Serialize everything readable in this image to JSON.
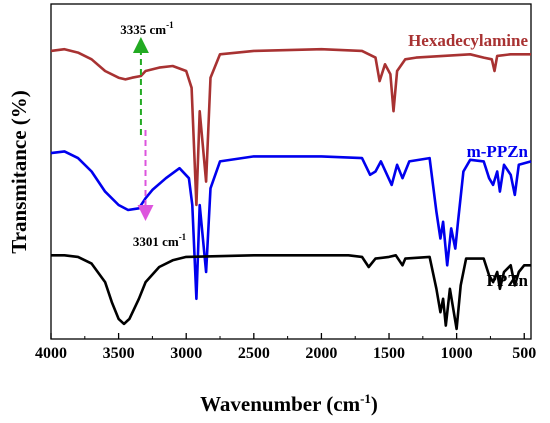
{
  "chart_data": {
    "type": "line",
    "xlabel": "Wavenumber (cm",
    "xlabel_sup": "-1",
    "xlabel_end": ")",
    "ylabel": "Transmitance (%)",
    "xlim": [
      4000,
      450
    ],
    "x_reversed": true,
    "x_ticks": [
      4000,
      3500,
      3000,
      2500,
      2000,
      1500,
      1000,
      500
    ],
    "y_tick_labels_shown": false,
    "legend": "inline labels",
    "series": [
      {
        "name": "Hexadecylamine",
        "color": "#a83232",
        "points": [
          [
            4000,
            0.86
          ],
          [
            3900,
            0.865
          ],
          [
            3800,
            0.855
          ],
          [
            3700,
            0.835
          ],
          [
            3600,
            0.8
          ],
          [
            3500,
            0.78
          ],
          [
            3450,
            0.775
          ],
          [
            3400,
            0.78
          ],
          [
            3335,
            0.785
          ],
          [
            3300,
            0.8
          ],
          [
            3200,
            0.81
          ],
          [
            3100,
            0.815
          ],
          [
            3000,
            0.8
          ],
          [
            2960,
            0.75
          ],
          [
            2925,
            0.4
          ],
          [
            2900,
            0.68
          ],
          [
            2853,
            0.47
          ],
          [
            2820,
            0.78
          ],
          [
            2750,
            0.85
          ],
          [
            2500,
            0.86
          ],
          [
            2000,
            0.865
          ],
          [
            1700,
            0.86
          ],
          [
            1600,
            0.84
          ],
          [
            1570,
            0.77
          ],
          [
            1530,
            0.82
          ],
          [
            1490,
            0.79
          ],
          [
            1467,
            0.68
          ],
          [
            1440,
            0.8
          ],
          [
            1380,
            0.835
          ],
          [
            1300,
            0.84
          ],
          [
            1100,
            0.845
          ],
          [
            900,
            0.85
          ],
          [
            800,
            0.84
          ],
          [
            740,
            0.835
          ],
          [
            720,
            0.8
          ],
          [
            700,
            0.845
          ],
          [
            600,
            0.85
          ],
          [
            450,
            0.85
          ]
        ]
      },
      {
        "name": "m-PPZn",
        "color": "#0000ee",
        "points": [
          [
            4000,
            0.555
          ],
          [
            3900,
            0.56
          ],
          [
            3800,
            0.54
          ],
          [
            3700,
            0.5
          ],
          [
            3600,
            0.44
          ],
          [
            3500,
            0.4
          ],
          [
            3430,
            0.385
          ],
          [
            3350,
            0.39
          ],
          [
            3301,
            0.42
          ],
          [
            3250,
            0.445
          ],
          [
            3150,
            0.48
          ],
          [
            3050,
            0.51
          ],
          [
            2980,
            0.48
          ],
          [
            2955,
            0.4
          ],
          [
            2925,
            0.12
          ],
          [
            2900,
            0.4
          ],
          [
            2853,
            0.2
          ],
          [
            2820,
            0.45
          ],
          [
            2750,
            0.53
          ],
          [
            2500,
            0.545
          ],
          [
            2000,
            0.545
          ],
          [
            1700,
            0.54
          ],
          [
            1640,
            0.49
          ],
          [
            1600,
            0.5
          ],
          [
            1560,
            0.53
          ],
          [
            1480,
            0.46
          ],
          [
            1440,
            0.52
          ],
          [
            1400,
            0.48
          ],
          [
            1350,
            0.53
          ],
          [
            1200,
            0.54
          ],
          [
            1150,
            0.38
          ],
          [
            1120,
            0.3
          ],
          [
            1100,
            0.35
          ],
          [
            1070,
            0.22
          ],
          [
            1040,
            0.33
          ],
          [
            1010,
            0.27
          ],
          [
            990,
            0.35
          ],
          [
            950,
            0.5
          ],
          [
            900,
            0.535
          ],
          [
            800,
            0.53
          ],
          [
            760,
            0.48
          ],
          [
            730,
            0.46
          ],
          [
            700,
            0.5
          ],
          [
            680,
            0.44
          ],
          [
            650,
            0.52
          ],
          [
            600,
            0.49
          ],
          [
            570,
            0.43
          ],
          [
            540,
            0.52
          ],
          [
            450,
            0.53
          ]
        ]
      },
      {
        "name": "PPZn",
        "color": "#000000",
        "points": [
          [
            4000,
            0.25
          ],
          [
            3900,
            0.25
          ],
          [
            3800,
            0.245
          ],
          [
            3700,
            0.225
          ],
          [
            3600,
            0.17
          ],
          [
            3550,
            0.11
          ],
          [
            3500,
            0.06
          ],
          [
            3460,
            0.045
          ],
          [
            3420,
            0.06
          ],
          [
            3350,
            0.12
          ],
          [
            3300,
            0.17
          ],
          [
            3200,
            0.215
          ],
          [
            3100,
            0.235
          ],
          [
            3000,
            0.245
          ],
          [
            2500,
            0.25
          ],
          [
            1800,
            0.25
          ],
          [
            1700,
            0.245
          ],
          [
            1650,
            0.215
          ],
          [
            1600,
            0.24
          ],
          [
            1500,
            0.245
          ],
          [
            1450,
            0.25
          ],
          [
            1400,
            0.22
          ],
          [
            1380,
            0.24
          ],
          [
            1200,
            0.245
          ],
          [
            1150,
            0.15
          ],
          [
            1120,
            0.08
          ],
          [
            1100,
            0.12
          ],
          [
            1080,
            0.04
          ],
          [
            1050,
            0.15
          ],
          [
            1000,
            0.03
          ],
          [
            970,
            0.16
          ],
          [
            930,
            0.24
          ],
          [
            800,
            0.24
          ],
          [
            760,
            0.19
          ],
          [
            730,
            0.17
          ],
          [
            700,
            0.2
          ],
          [
            680,
            0.15
          ],
          [
            650,
            0.2
          ],
          [
            600,
            0.22
          ],
          [
            570,
            0.16
          ],
          [
            540,
            0.2
          ],
          [
            500,
            0.22
          ],
          [
            450,
            0.22
          ]
        ]
      }
    ],
    "annotations": [
      {
        "text": "3335 cm",
        "sup": "-1",
        "x": 3335,
        "color": "#22aa22",
        "direction": "up"
      },
      {
        "text": "3301 cm",
        "sup": "-1",
        "x": 3301,
        "color": "#dd55dd",
        "direction": "down"
      }
    ]
  }
}
